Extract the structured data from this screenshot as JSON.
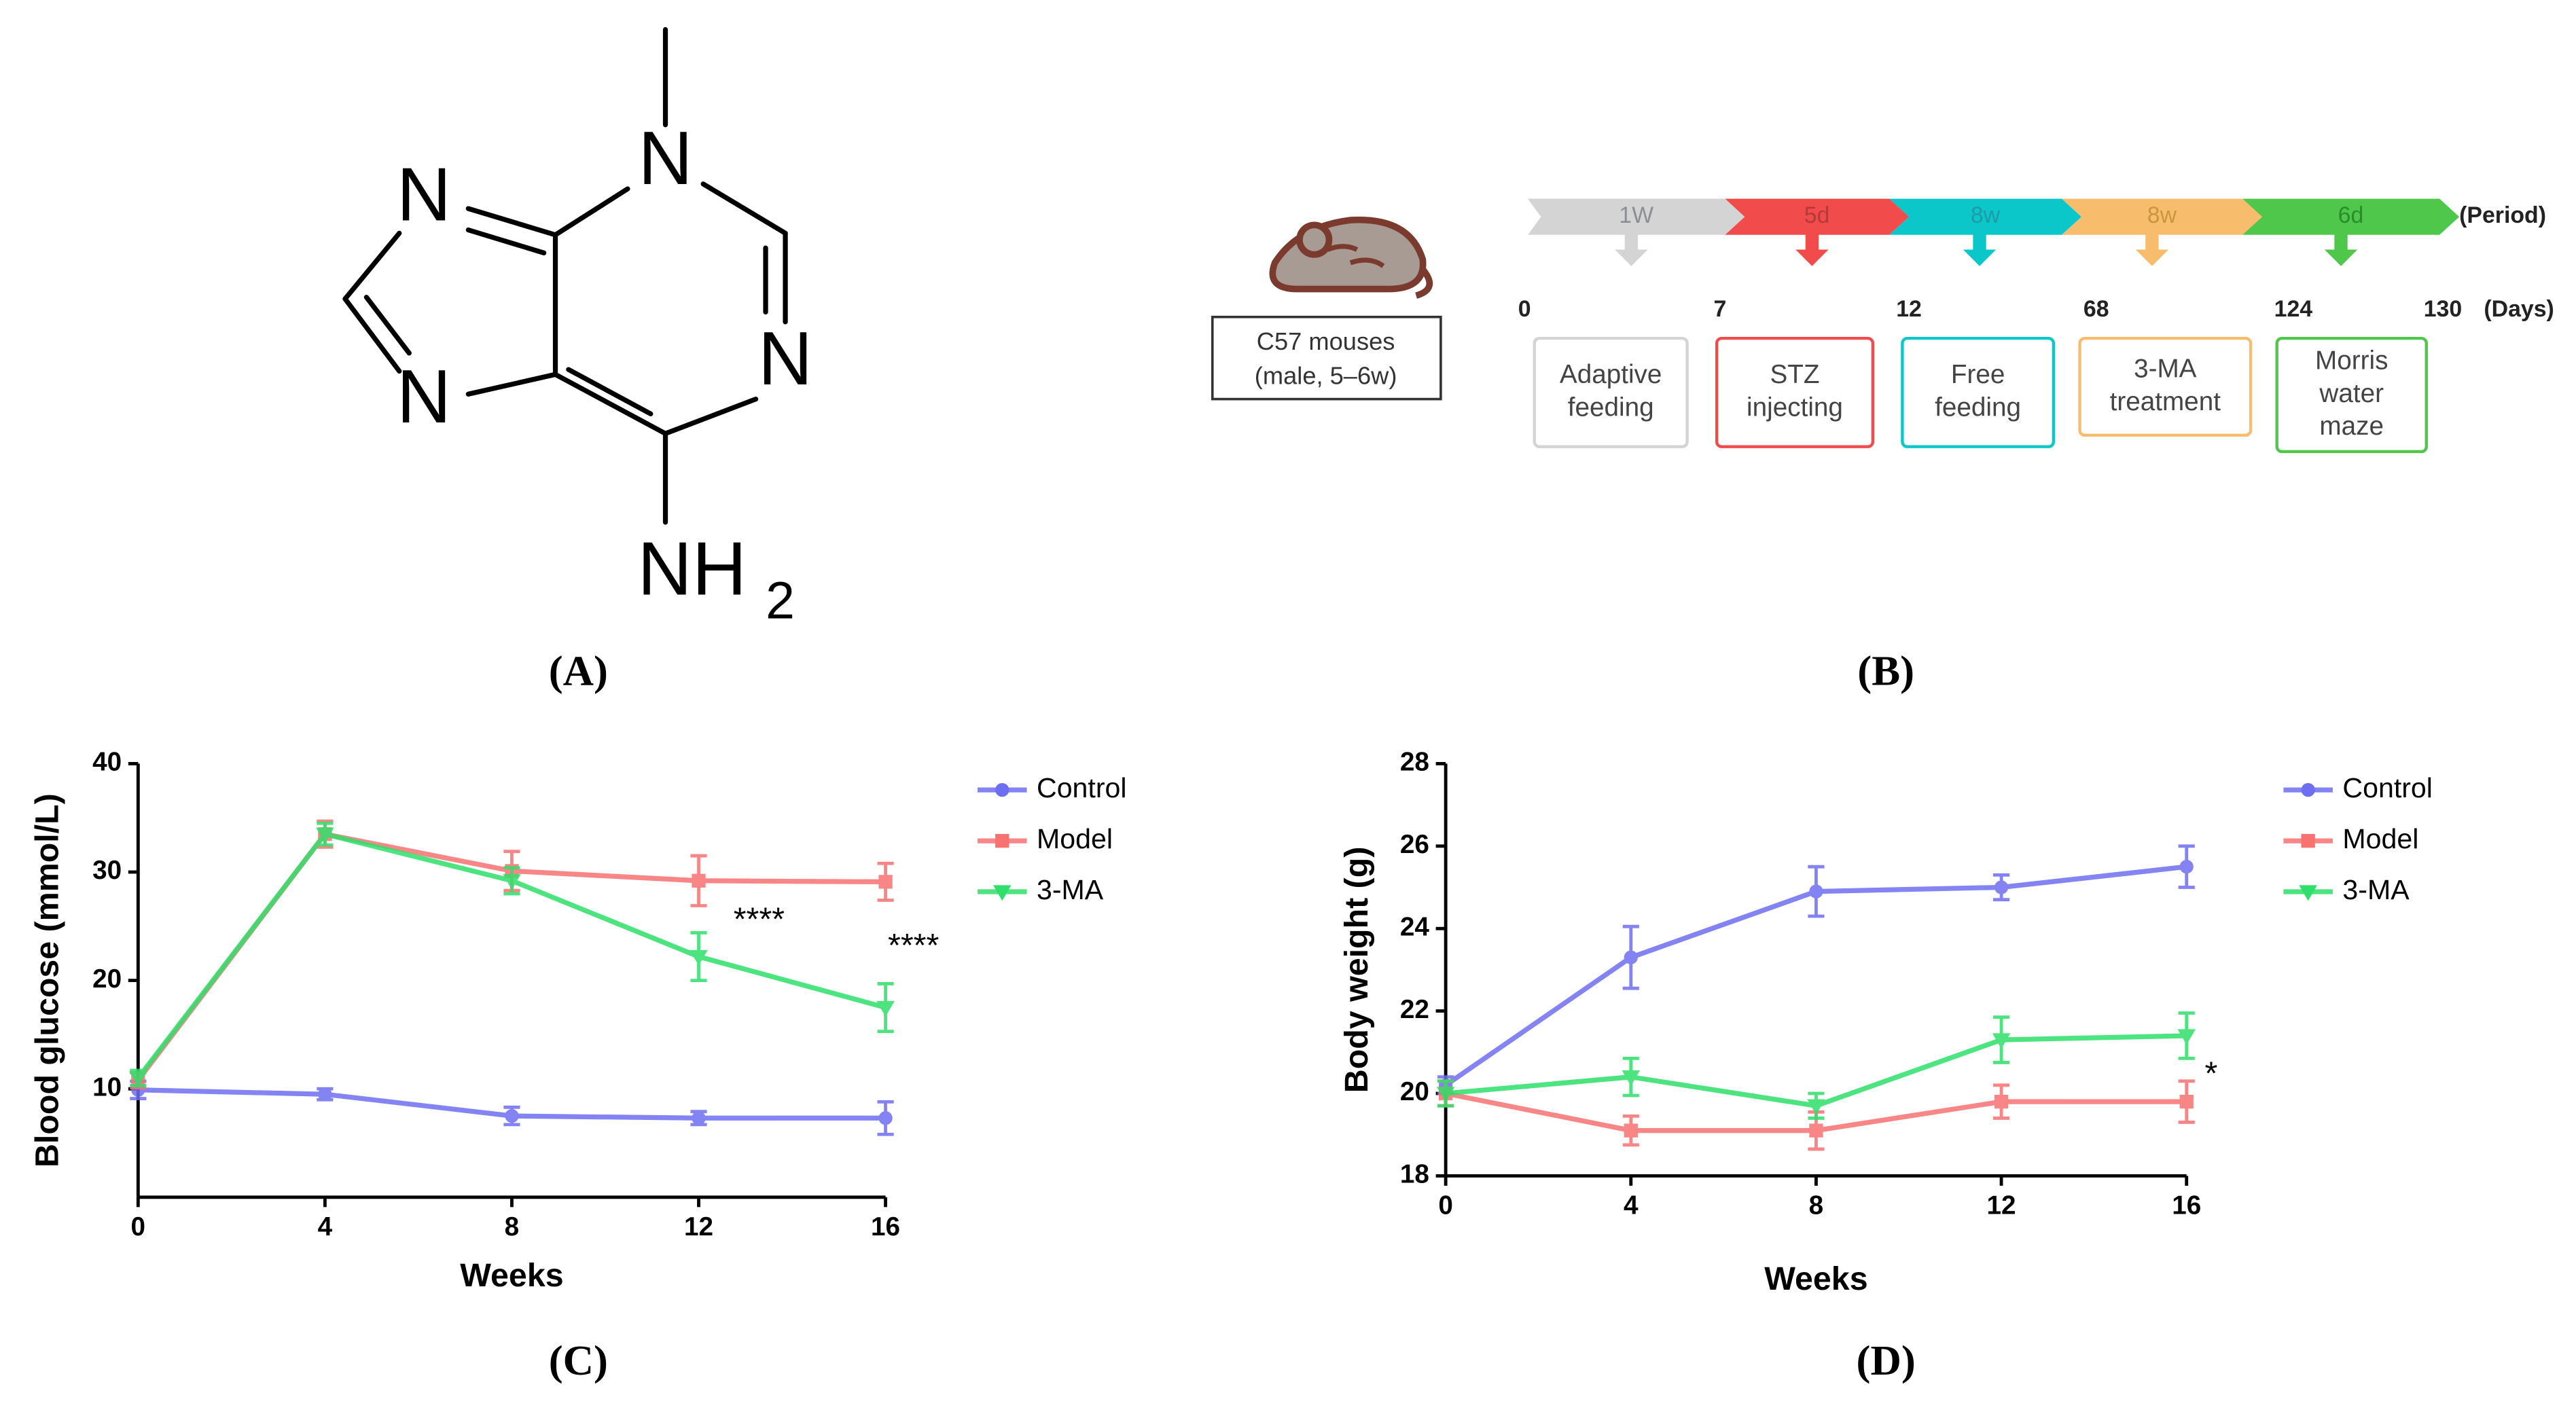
{
  "panels": [
    "(A)",
    "(B)",
    "(C)",
    "(D)"
  ],
  "structure": {
    "atoms": [
      "N",
      "N",
      "N",
      "N"
    ],
    "amine": "NH",
    "amine_subscript": "2"
  },
  "timeline": {
    "subject": [
      "C57 mouses",
      "(male, 5–6w)"
    ],
    "period_label": "(Period)",
    "days_label": "(Days)",
    "days": [
      0,
      7,
      12,
      68,
      124,
      130
    ],
    "stages": [
      {
        "period": "1W",
        "label": [
          "Adaptive",
          "feeding"
        ],
        "color": "#d4d4d4",
        "text_color": "#8c9096"
      },
      {
        "period": "5d",
        "label": [
          "STZ",
          "injecting"
        ],
        "color": "#f14b4b",
        "text_color": "#b63a3a"
      },
      {
        "period": "8w",
        "label": [
          "Free",
          "feeding"
        ],
        "color": "#0cc7c9",
        "text_color": "#1f9aa8"
      },
      {
        "period": "8w",
        "label": [
          "3-MA",
          "treatment"
        ],
        "color": "#f8bd6c",
        "text_color": "#c89640"
      },
      {
        "period": "6d",
        "label": [
          "Morris",
          "water",
          "maze"
        ],
        "color": "#4ec74a",
        "text_color": "#2a8c2a"
      }
    ]
  },
  "chart_data": [
    {
      "type": "line",
      "xlabel": "Weeks",
      "ylabel": "Blood glucose (mmol/L)",
      "x": [
        0,
        4,
        8,
        12,
        16
      ],
      "xlim": [
        0,
        16
      ],
      "xticks": [
        0,
        4,
        8,
        12,
        16
      ],
      "ylim": [
        0,
        40
      ],
      "yticks": [
        10,
        20,
        30,
        40
      ],
      "legend": "right",
      "series": [
        {
          "name": "Control",
          "color": "#6e6ef2",
          "marker": "circle",
          "values": [
            9.9,
            9.5,
            7.5,
            7.3,
            7.3
          ],
          "errors": [
            0.8,
            0.5,
            0.8,
            0.6,
            1.5
          ]
        },
        {
          "name": "Model",
          "color": "#f87272",
          "marker": "square",
          "values": [
            10.8,
            33.5,
            30.1,
            29.2,
            29.1
          ],
          "errors": [
            0.7,
            1.2,
            1.8,
            2.3,
            1.7
          ]
        },
        {
          "name": "3-MA",
          "color": "#2ee06b",
          "marker": "triangle-down",
          "values": [
            11.0,
            33.5,
            29.2,
            22.2,
            17.5
          ],
          "errors": [
            0.7,
            1.0,
            1.2,
            2.2,
            2.2
          ]
        }
      ],
      "annotations": [
        "****",
        "****"
      ]
    },
    {
      "type": "line",
      "xlabel": "Weeks",
      "ylabel": "Body weight (g)",
      "x": [
        0,
        4,
        8,
        12,
        16
      ],
      "xlim": [
        0,
        16
      ],
      "xticks": [
        0,
        4,
        8,
        12,
        16
      ],
      "ylim": [
        18,
        28
      ],
      "yticks": [
        18,
        20,
        22,
        24,
        26,
        28
      ],
      "legend": "right",
      "series": [
        {
          "name": "Control",
          "color": "#6e6ef2",
          "marker": "circle",
          "values": [
            20.2,
            23.3,
            24.9,
            25.0,
            25.5
          ],
          "errors": [
            0.2,
            0.75,
            0.6,
            0.3,
            0.5
          ]
        },
        {
          "name": "Model",
          "color": "#f87272",
          "marker": "square",
          "values": [
            20.0,
            19.1,
            19.1,
            19.8,
            19.8
          ],
          "errors": [
            0.3,
            0.35,
            0.45,
            0.4,
            0.5
          ]
        },
        {
          "name": "3-MA",
          "color": "#2ee06b",
          "marker": "triangle-down",
          "values": [
            20.0,
            20.4,
            19.7,
            21.3,
            21.4
          ],
          "errors": [
            0.3,
            0.45,
            0.3,
            0.55,
            0.55
          ]
        }
      ],
      "annotations": [
        "*"
      ]
    }
  ]
}
